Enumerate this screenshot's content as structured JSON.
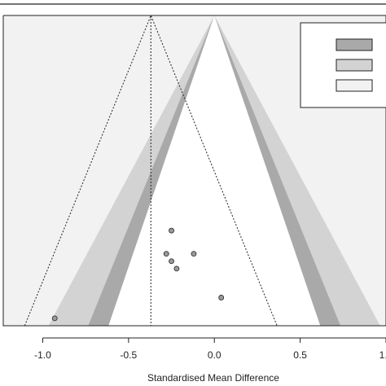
{
  "chart_data": {
    "type": "scatter",
    "subtype": "contour-enhanced funnel plot",
    "xlabel": "Standardised Mean Difference",
    "xlim": [
      -1.23,
      1.0
    ],
    "x_ticks": [
      -1.0,
      -0.5,
      0.0,
      0.5,
      1.0
    ],
    "x_tick_labels": [
      "-1.0",
      "-0.5",
      "0.0",
      "0.5",
      "1.0"
    ],
    "ylim_standard_error": [
      0.0,
      0.375
    ],
    "y_axis_reversed": true,
    "grid": false,
    "summary_estimate": -0.37,
    "funnel_apex": 0.0,
    "contour_levels_z": [
      1.645,
      1.96,
      2.576
    ],
    "legend": {
      "placement": "top-right",
      "entries": [
        "",
        "",
        ""
      ],
      "colors": [
        "#a9a9a9",
        "#d3d3d3",
        "#f2f2f2"
      ]
    },
    "points": [
      {
        "x": -0.25,
        "y": 0.26
      },
      {
        "x": -0.28,
        "y": 0.288
      },
      {
        "x": -0.12,
        "y": 0.288
      },
      {
        "x": -0.25,
        "y": 0.297
      },
      {
        "x": -0.22,
        "y": 0.306
      },
      {
        "x": 0.04,
        "y": 0.341
      },
      {
        "x": -0.93,
        "y": 0.366
      }
    ],
    "colors": {
      "background": "#f2f2f2",
      "contour_dark": "#a9a9a9",
      "contour_mid": "#d3d3d3",
      "inner": "#ffffff",
      "point_fill": "#9a9a9a",
      "line": "#222222"
    }
  }
}
